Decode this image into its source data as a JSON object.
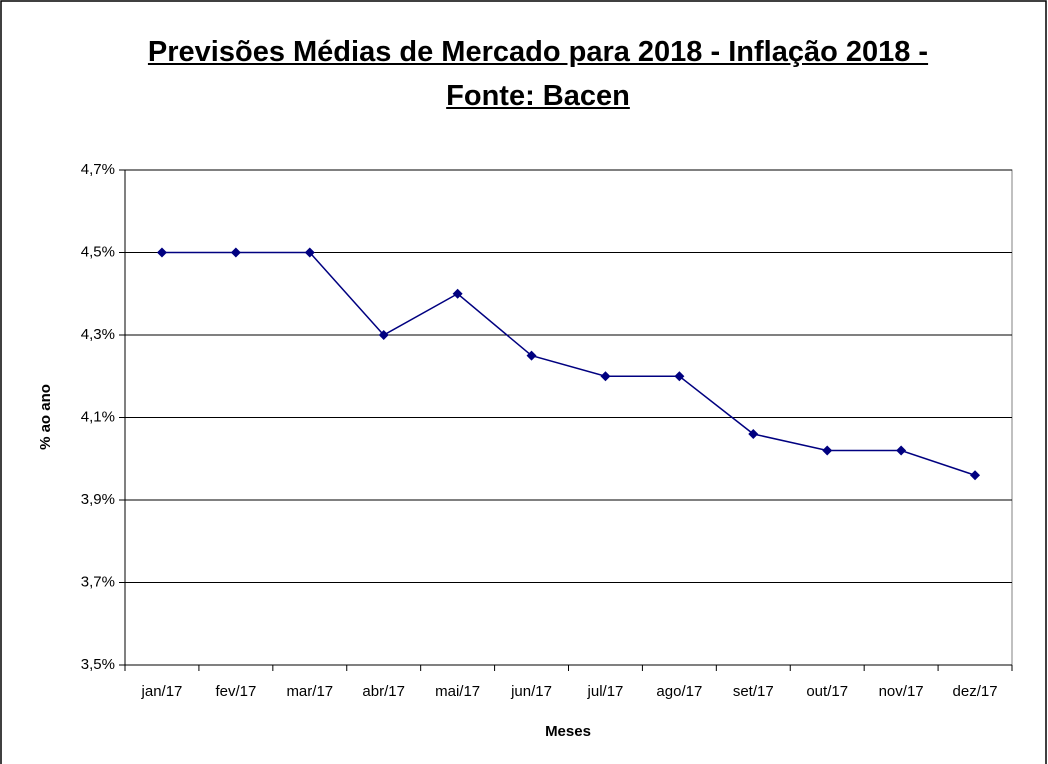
{
  "chart_data": {
    "type": "line",
    "title": "Previsões Médias de Mercado para 2018 - Inflação 2018 - Fonte: Bacen",
    "x_label": "Meses",
    "y_label": "% ao ano",
    "categories": [
      "jan/17",
      "fev/17",
      "mar/17",
      "abr/17",
      "mai/17",
      "jun/17",
      "jul/17",
      "ago/17",
      "set/17",
      "out/17",
      "nov/17",
      "dez/17"
    ],
    "series": [
      {
        "name": "Inflação 2018",
        "color": "#000080",
        "values": [
          4.5,
          4.5,
          4.5,
          4.3,
          4.4,
          4.25,
          4.2,
          4.2,
          4.06,
          4.02,
          4.02,
          3.96
        ]
      }
    ],
    "ylim": [
      3.5,
      4.7
    ],
    "yticks": [
      {
        "value": 3.5,
        "label": "3,5%"
      },
      {
        "value": 3.7,
        "label": "3,7%"
      },
      {
        "value": 3.9,
        "label": "3,9%"
      },
      {
        "value": 4.1,
        "label": "4,1%"
      },
      {
        "value": 4.3,
        "label": "4,3%"
      },
      {
        "value": 4.5,
        "label": "4,5%"
      },
      {
        "value": 4.7,
        "label": "4,7%"
      }
    ],
    "grid": true,
    "legend": false
  }
}
